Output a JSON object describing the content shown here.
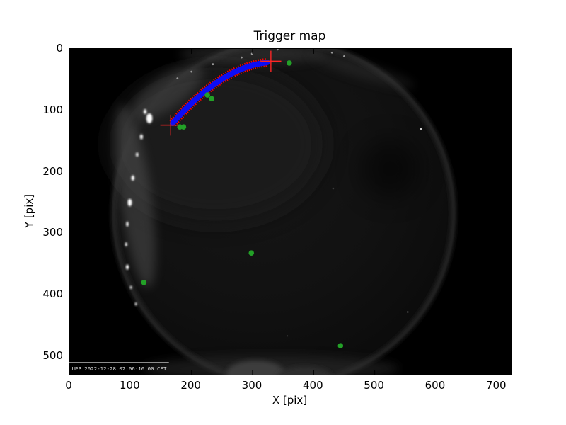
{
  "chart_data": {
    "type": "scatter",
    "title": "Trigger map",
    "xlabel": "X [pix]",
    "ylabel": "Y [pix]",
    "xlim": [
      0,
      724
    ],
    "ylim": [
      530,
      0
    ],
    "x_ticks": [
      0,
      100,
      200,
      300,
      400,
      500,
      600,
      700
    ],
    "y_ticks": [
      0,
      100,
      200,
      300,
      400,
      500
    ],
    "grid": false,
    "background_type": "all-sky fisheye camera grayscale frame",
    "overlay_text": "UPP 2022-12-28 02:06:10.00 CET",
    "trail": {
      "name": "meteor trigger trail",
      "color": "#0d0df5",
      "outline_color": "#ff0000",
      "start": [
        169,
        121
      ],
      "control": [
        248,
        30
      ],
      "end": [
        324,
        22
      ],
      "endpoint_marker": "+",
      "endpoint_color": "#ff2626",
      "endpoints": [
        [
          166,
          124
        ],
        [
          330,
          20
        ]
      ]
    },
    "trigger_points": {
      "name": "isolated trigger pixels",
      "marker": "o",
      "color": "#23a127",
      "points": [
        [
          360,
          23
        ],
        [
          226,
          75
        ],
        [
          233,
          81
        ],
        [
          181,
          127
        ],
        [
          187,
          127
        ],
        [
          298,
          332
        ],
        [
          122,
          380
        ],
        [
          444,
          483
        ]
      ]
    },
    "background_features": {
      "disc_center": [
        351,
        267
      ],
      "disc_radius": 281,
      "city_lights": [
        [
          131,
          113,
          5,
          8
        ],
        [
          124,
          102,
          2.5,
          4
        ],
        [
          118,
          143,
          2.5,
          4
        ],
        [
          111,
          172,
          2,
          3.5
        ],
        [
          104,
          210,
          2.5,
          4.5
        ],
        [
          99,
          250,
          3.5,
          6
        ],
        [
          95,
          285,
          2,
          4
        ],
        [
          93,
          318,
          1.8,
          3.5
        ],
        [
          95,
          355,
          2.5,
          4
        ],
        [
          101,
          388,
          1.5,
          2.5
        ],
        [
          109,
          415,
          1.5,
          2.5
        ]
      ],
      "rim_specks": [
        [
          177,
          48
        ],
        [
          200,
          37
        ],
        [
          235,
          25
        ],
        [
          282,
          14
        ],
        [
          299,
          8
        ],
        [
          341,
          1
        ],
        [
          430,
          6
        ],
        [
          450,
          12
        ]
      ],
      "stars": [
        [
          576,
          130,
          2,
          "#cccccc"
        ],
        [
          432,
          227,
          1.5,
          "#3a3a3a"
        ],
        [
          554,
          428,
          1.5,
          "#4a4a4a"
        ],
        [
          357,
          467,
          1.2,
          "#3a3a3a"
        ]
      ],
      "dark_cloud": [
        525,
        195,
        48
      ],
      "horizon_dome": [
        305,
        527
      ]
    }
  }
}
